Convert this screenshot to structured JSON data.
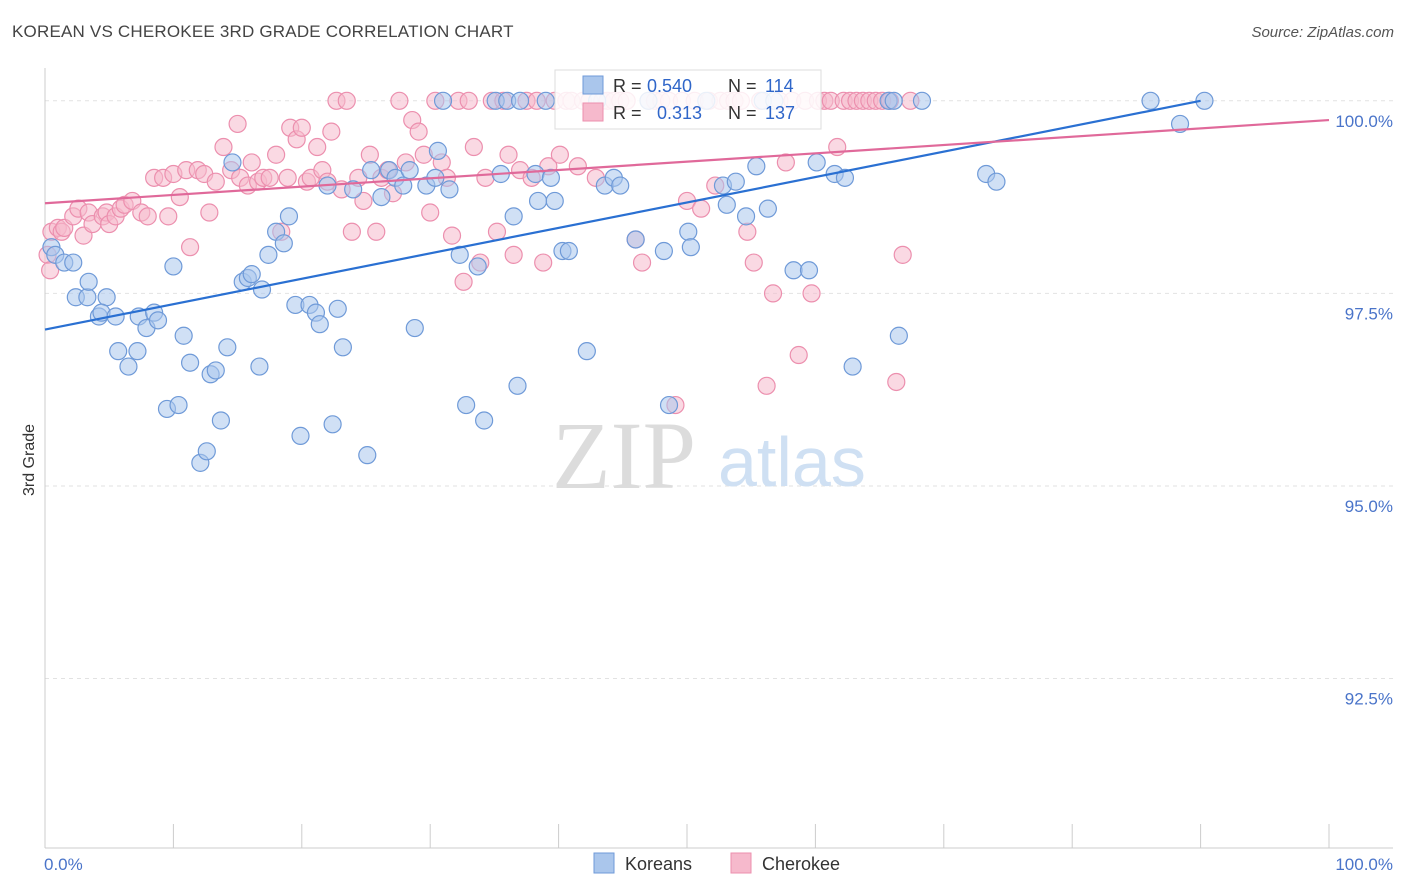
{
  "header": {
    "title": "KOREAN VS CHEROKEE 3RD GRADE CORRELATION CHART",
    "source": "Source: ZipAtlas.com"
  },
  "watermark": {
    "zip": "ZIP",
    "atlas": "atlas"
  },
  "chart_data": {
    "type": "scatter",
    "ylabel": "3rd Grade",
    "xlim": [
      0,
      100
    ],
    "ylim": [
      90.3,
      100.4
    ],
    "x_tick_labels": [
      "0.0%",
      "100.0%"
    ],
    "y_ticks": [
      {
        "value": 100.0,
        "label": "100.0%"
      },
      {
        "value": 97.5,
        "label": "97.5%"
      },
      {
        "value": 95.0,
        "label": "95.0%"
      },
      {
        "value": 92.5,
        "label": "92.5%"
      }
    ],
    "grid": "horizontal dashed",
    "legend_position": "bottom-center",
    "colors": {
      "koreans_fill": "#aac6ec",
      "koreans_stroke": "#6f9ad8",
      "koreans_line": "#2a70d2",
      "cherokee_fill": "#f6b9cc",
      "cherokee_stroke": "#ec8fae",
      "cherokee_line": "#e0699a",
      "tick_text": "#4a74c9",
      "stat_value": "#2f66c9"
    },
    "stats": [
      {
        "r_label": "R =",
        "r_value": "0.540",
        "n_label": "N =",
        "n_value": "114"
      },
      {
        "r_label": "R =",
        "r_value": "0.313",
        "n_label": "N =",
        "n_value": "137"
      }
    ],
    "series": [
      {
        "name": "Koreans",
        "trend": {
          "x": [
            0,
            90
          ],
          "y": [
            97.03,
            100.0
          ]
        },
        "points": [
          [
            0.5,
            98.1
          ],
          [
            0.8,
            98.0
          ],
          [
            1.5,
            97.9
          ],
          [
            2.2,
            97.9
          ],
          [
            2.4,
            97.45
          ],
          [
            3.3,
            97.45
          ],
          [
            3.4,
            97.65
          ],
          [
            4.8,
            97.45
          ],
          [
            4.2,
            97.2
          ],
          [
            4.4,
            97.25
          ],
          [
            5.5,
            97.2
          ],
          [
            5.7,
            96.75
          ],
          [
            6.5,
            96.55
          ],
          [
            7.3,
            97.2
          ],
          [
            7.2,
            96.75
          ],
          [
            7.9,
            97.05
          ],
          [
            8.5,
            97.25
          ],
          [
            8.8,
            97.15
          ],
          [
            9.5,
            96.0
          ],
          [
            10.0,
            97.85
          ],
          [
            10.4,
            96.05
          ],
          [
            10.8,
            96.95
          ],
          [
            11.3,
            96.6
          ],
          [
            12.1,
            95.3
          ],
          [
            12.6,
            95.45
          ],
          [
            12.9,
            96.45
          ],
          [
            13.3,
            96.5
          ],
          [
            13.7,
            95.85
          ],
          [
            14.2,
            96.8
          ],
          [
            14.6,
            99.2
          ],
          [
            15.4,
            97.65
          ],
          [
            15.8,
            97.7
          ],
          [
            16.1,
            97.75
          ],
          [
            16.7,
            96.55
          ],
          [
            16.9,
            97.55
          ],
          [
            17.4,
            98.0
          ],
          [
            18.0,
            98.3
          ],
          [
            18.6,
            98.15
          ],
          [
            19.0,
            98.5
          ],
          [
            19.5,
            97.35
          ],
          [
            19.9,
            95.65
          ],
          [
            20.6,
            97.35
          ],
          [
            21.1,
            97.25
          ],
          [
            21.4,
            97.1
          ],
          [
            22.0,
            98.9
          ],
          [
            22.4,
            95.8
          ],
          [
            22.8,
            97.3
          ],
          [
            23.2,
            96.8
          ],
          [
            24.0,
            98.85
          ],
          [
            25.4,
            99.1
          ],
          [
            25.1,
            95.4
          ],
          [
            26.2,
            98.75
          ],
          [
            26.8,
            99.1
          ],
          [
            27.3,
            99.0
          ],
          [
            27.9,
            98.9
          ],
          [
            28.4,
            99.1
          ],
          [
            28.8,
            97.05
          ],
          [
            29.7,
            98.9
          ],
          [
            30.4,
            99.0
          ],
          [
            30.6,
            99.35
          ],
          [
            31.5,
            98.85
          ],
          [
            31.0,
            100.0
          ],
          [
            32.3,
            98.0
          ],
          [
            32.8,
            96.05
          ],
          [
            33.7,
            97.85
          ],
          [
            34.2,
            95.85
          ],
          [
            35.1,
            100.0
          ],
          [
            35.5,
            99.05
          ],
          [
            36.0,
            100.0
          ],
          [
            36.5,
            98.5
          ],
          [
            36.8,
            96.3
          ],
          [
            37.0,
            100.0
          ],
          [
            38.2,
            99.05
          ],
          [
            38.4,
            98.7
          ],
          [
            39.0,
            100.0
          ],
          [
            39.4,
            99.0
          ],
          [
            39.7,
            98.7
          ],
          [
            40.3,
            98.05
          ],
          [
            40.8,
            98.05
          ],
          [
            42.2,
            96.75
          ],
          [
            43.0,
            100.0
          ],
          [
            43.6,
            98.9
          ],
          [
            44.3,
            99.0
          ],
          [
            44.8,
            98.9
          ],
          [
            46.0,
            98.2
          ],
          [
            47.0,
            100.0
          ],
          [
            48.2,
            98.05
          ],
          [
            48.6,
            96.05
          ],
          [
            50.1,
            98.3
          ],
          [
            50.3,
            98.1
          ],
          [
            51.5,
            100.0
          ],
          [
            52.8,
            98.9
          ],
          [
            53.1,
            98.65
          ],
          [
            53.8,
            98.95
          ],
          [
            54.6,
            98.5
          ],
          [
            55.4,
            99.15
          ],
          [
            55.9,
            100.0
          ],
          [
            56.3,
            98.6
          ],
          [
            56.8,
            100.0
          ],
          [
            58.3,
            97.8
          ],
          [
            59.5,
            97.8
          ],
          [
            60.1,
            99.2
          ],
          [
            61.5,
            99.05
          ],
          [
            62.3,
            99.0
          ],
          [
            62.9,
            96.55
          ],
          [
            65.7,
            100.0
          ],
          [
            66.1,
            100.0
          ],
          [
            66.5,
            96.95
          ],
          [
            68.3,
            100.0
          ],
          [
            73.3,
            99.05
          ],
          [
            74.1,
            98.95
          ],
          [
            86.1,
            100.0
          ],
          [
            88.4,
            99.7
          ],
          [
            90.3,
            100.0
          ]
        ]
      },
      {
        "name": "Cherokee",
        "trend": {
          "x": [
            0,
            100
          ],
          "y": [
            98.67,
            99.75
          ]
        },
        "points": [
          [
            0.2,
            98.0
          ],
          [
            0.4,
            97.8
          ],
          [
            0.5,
            98.3
          ],
          [
            1.0,
            98.35
          ],
          [
            1.3,
            98.3
          ],
          [
            1.5,
            98.35
          ],
          [
            2.2,
            98.5
          ],
          [
            2.6,
            98.6
          ],
          [
            3.4,
            98.55
          ],
          [
            3.0,
            98.25
          ],
          [
            3.7,
            98.4
          ],
          [
            4.5,
            98.5
          ],
          [
            4.8,
            98.55
          ],
          [
            5.0,
            98.4
          ],
          [
            5.5,
            98.5
          ],
          [
            5.9,
            98.6
          ],
          [
            6.2,
            98.65
          ],
          [
            6.8,
            98.7
          ],
          [
            7.5,
            98.55
          ],
          [
            8.0,
            98.5
          ],
          [
            8.5,
            99.0
          ],
          [
            9.2,
            99.0
          ],
          [
            9.6,
            98.5
          ],
          [
            10.0,
            99.05
          ],
          [
            10.5,
            98.75
          ],
          [
            11.0,
            99.1
          ],
          [
            11.3,
            98.1
          ],
          [
            11.9,
            99.1
          ],
          [
            12.4,
            99.05
          ],
          [
            12.8,
            98.55
          ],
          [
            13.3,
            98.95
          ],
          [
            13.9,
            99.4
          ],
          [
            14.5,
            99.1
          ],
          [
            15.0,
            99.7
          ],
          [
            15.2,
            99.0
          ],
          [
            15.8,
            98.9
          ],
          [
            16.1,
            99.2
          ],
          [
            16.6,
            98.95
          ],
          [
            17.0,
            99.0
          ],
          [
            17.5,
            99.0
          ],
          [
            18.0,
            99.3
          ],
          [
            18.4,
            98.3
          ],
          [
            18.9,
            99.0
          ],
          [
            19.1,
            99.65
          ],
          [
            19.6,
            99.5
          ],
          [
            20.0,
            99.65
          ],
          [
            20.4,
            98.95
          ],
          [
            20.7,
            99.0
          ],
          [
            21.2,
            99.4
          ],
          [
            21.6,
            99.1
          ],
          [
            22.0,
            98.95
          ],
          [
            22.3,
            99.6
          ],
          [
            22.7,
            100.0
          ],
          [
            23.1,
            98.85
          ],
          [
            23.5,
            100.0
          ],
          [
            23.9,
            98.3
          ],
          [
            24.4,
            99.0
          ],
          [
            24.8,
            98.7
          ],
          [
            25.3,
            99.3
          ],
          [
            25.8,
            98.3
          ],
          [
            26.2,
            99.0
          ],
          [
            26.7,
            99.1
          ],
          [
            27.1,
            98.8
          ],
          [
            27.6,
            100.0
          ],
          [
            28.1,
            99.2
          ],
          [
            28.6,
            99.75
          ],
          [
            29.1,
            99.6
          ],
          [
            29.5,
            99.3
          ],
          [
            30.0,
            98.55
          ],
          [
            30.4,
            100.0
          ],
          [
            30.9,
            99.2
          ],
          [
            31.3,
            99.0
          ],
          [
            31.7,
            98.25
          ],
          [
            32.2,
            100.0
          ],
          [
            32.6,
            97.65
          ],
          [
            33.0,
            100.0
          ],
          [
            33.4,
            99.4
          ],
          [
            33.9,
            97.9
          ],
          [
            34.3,
            99.0
          ],
          [
            34.8,
            100.0
          ],
          [
            35.2,
            98.3
          ],
          [
            35.7,
            100.0
          ],
          [
            36.1,
            99.3
          ],
          [
            36.5,
            98.0
          ],
          [
            37.0,
            99.1
          ],
          [
            37.5,
            100.0
          ],
          [
            37.9,
            99.0
          ],
          [
            38.3,
            100.0
          ],
          [
            38.8,
            97.9
          ],
          [
            39.2,
            99.15
          ],
          [
            39.7,
            100.0
          ],
          [
            40.1,
            99.3
          ],
          [
            40.6,
            100.0
          ],
          [
            41.0,
            100.0
          ],
          [
            41.5,
            99.15
          ],
          [
            41.9,
            100.0
          ],
          [
            42.4,
            100.0
          ],
          [
            42.9,
            99.0
          ],
          [
            43.4,
            100.0
          ],
          [
            43.8,
            100.0
          ],
          [
            44.3,
            100.0
          ],
          [
            44.8,
            100.0
          ],
          [
            45.3,
            100.0
          ],
          [
            46.0,
            98.2
          ],
          [
            46.5,
            97.9
          ],
          [
            47.0,
            100.0
          ],
          [
            47.5,
            100.0
          ],
          [
            48.0,
            100.0
          ],
          [
            48.6,
            100.0
          ],
          [
            49.1,
            96.05
          ],
          [
            49.6,
            100.0
          ],
          [
            50.0,
            98.7
          ],
          [
            50.6,
            100.0
          ],
          [
            51.1,
            98.6
          ],
          [
            51.7,
            100.0
          ],
          [
            52.2,
            98.9
          ],
          [
            52.6,
            100.0
          ],
          [
            53.2,
            100.0
          ],
          [
            53.7,
            100.0
          ],
          [
            54.2,
            100.0
          ],
          [
            54.7,
            98.3
          ],
          [
            55.2,
            97.9
          ],
          [
            55.7,
            100.0
          ],
          [
            56.2,
            96.3
          ],
          [
            56.7,
            97.5
          ],
          [
            57.2,
            100.0
          ],
          [
            57.7,
            99.2
          ],
          [
            58.2,
            100.0
          ],
          [
            58.7,
            96.7
          ],
          [
            59.2,
            100.0
          ],
          [
            59.7,
            97.5
          ],
          [
            60.2,
            100.0
          ],
          [
            60.7,
            100.0
          ],
          [
            61.2,
            100.0
          ],
          [
            61.7,
            99.4
          ],
          [
            62.2,
            100.0
          ],
          [
            62.7,
            100.0
          ],
          [
            63.2,
            100.0
          ],
          [
            63.7,
            100.0
          ],
          [
            64.2,
            100.0
          ],
          [
            64.7,
            100.0
          ],
          [
            65.2,
            100.0
          ],
          [
            65.8,
            100.0
          ],
          [
            66.3,
            96.35
          ],
          [
            66.8,
            98.0
          ],
          [
            67.4,
            100.0
          ]
        ]
      }
    ]
  },
  "legend": [
    {
      "label": "Koreans"
    },
    {
      "label": "Cherokee"
    }
  ]
}
